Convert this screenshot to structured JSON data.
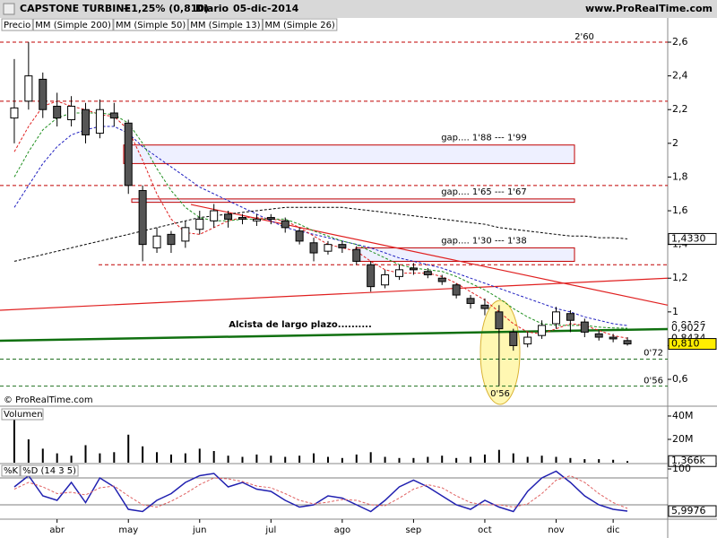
{
  "header": {
    "symbol": "CAPSTONE TURBINE",
    "change": "+1,25% (0,810)",
    "period": "Diario",
    "date": "05-dic-2014",
    "site": "www.ProRealTime.com"
  },
  "chart_data": [
    {
      "type": "candlestick",
      "name": "Precio",
      "watermark": "© ProRealTime.com",
      "categories": [
        null,
        null,
        null,
        "abr",
        null,
        null,
        null,
        null,
        "may",
        null,
        null,
        null,
        null,
        "jun",
        null,
        null,
        null,
        null,
        "jul",
        null,
        null,
        null,
        null,
        "ago",
        null,
        null,
        null,
        null,
        "sep",
        null,
        null,
        null,
        null,
        "oct",
        null,
        null,
        null,
        null,
        "nov",
        null,
        null,
        null,
        "dic",
        null
      ],
      "open": [
        2.15,
        2.25,
        2.38,
        2.22,
        2.14,
        2.2,
        2.06,
        2.18,
        2.12,
        1.72,
        1.38,
        1.46,
        1.42,
        1.49,
        1.54,
        1.58,
        1.56,
        1.54,
        1.56,
        1.54,
        1.48,
        1.41,
        1.36,
        1.4,
        1.37,
        1.28,
        1.16,
        1.21,
        1.26,
        1.24,
        1.2,
        1.16,
        1.08,
        1.04,
        1.0,
        0.88,
        0.81,
        0.86,
        0.93,
        0.99,
        0.94,
        0.87,
        0.85,
        0.83
      ],
      "high": [
        2.5,
        2.6,
        2.42,
        2.3,
        2.28,
        2.24,
        2.26,
        2.24,
        2.14,
        1.75,
        1.5,
        1.48,
        1.54,
        1.6,
        1.64,
        1.6,
        1.58,
        1.58,
        1.58,
        1.56,
        1.5,
        1.44,
        1.42,
        1.42,
        1.39,
        1.3,
        1.25,
        1.28,
        1.29,
        1.26,
        1.22,
        1.17,
        1.1,
        1.08,
        1.04,
        0.9,
        0.88,
        0.95,
        1.03,
        1.01,
        0.96,
        0.89,
        0.87,
        0.85
      ],
      "low": [
        2.0,
        2.2,
        2.15,
        2.1,
        2.1,
        2.0,
        2.03,
        2.1,
        1.7,
        1.3,
        1.35,
        1.35,
        1.38,
        1.46,
        1.5,
        1.5,
        1.52,
        1.51,
        1.52,
        1.47,
        1.4,
        1.3,
        1.34,
        1.35,
        1.28,
        1.12,
        1.14,
        1.19,
        1.22,
        1.2,
        1.16,
        1.08,
        1.02,
        0.98,
        0.56,
        0.77,
        0.79,
        0.84,
        0.9,
        0.88,
        0.85,
        0.83,
        0.82,
        0.8
      ],
      "close": [
        2.21,
        2.4,
        2.2,
        2.15,
        2.22,
        2.05,
        2.2,
        2.15,
        1.75,
        1.4,
        1.45,
        1.4,
        1.5,
        1.55,
        1.6,
        1.55,
        1.55,
        1.55,
        1.55,
        1.5,
        1.42,
        1.35,
        1.4,
        1.38,
        1.3,
        1.15,
        1.22,
        1.25,
        1.25,
        1.22,
        1.18,
        1.1,
        1.05,
        1.02,
        0.9,
        0.8,
        0.85,
        0.92,
        1.0,
        0.95,
        0.88,
        0.85,
        0.84,
        0.81
      ],
      "last_label": "0,810",
      "color_up": "#ffffff",
      "color_down": "#555555",
      "series": [
        {
          "name": "MM (Simple 200)",
          "color": "#000000",
          "last_label": "1,4330",
          "values": [
            1.3,
            1.32,
            1.34,
            1.36,
            1.38,
            1.4,
            1.42,
            1.44,
            1.46,
            1.48,
            1.5,
            1.52,
            1.54,
            1.56,
            1.57,
            1.58,
            1.59,
            1.6,
            1.61,
            1.62,
            1.62,
            1.62,
            1.62,
            1.62,
            1.61,
            1.6,
            1.59,
            1.58,
            1.57,
            1.56,
            1.55,
            1.54,
            1.53,
            1.52,
            1.5,
            1.49,
            1.48,
            1.47,
            1.46,
            1.45,
            1.45,
            1.44,
            1.44,
            1.433
          ]
        },
        {
          "name": "MM (Simple 50)",
          "color": "#2020c0",
          "last_label": "0,9186",
          "values": [
            1.62,
            1.75,
            1.88,
            1.98,
            2.05,
            2.08,
            2.1,
            2.1,
            2.06,
            1.98,
            1.92,
            1.86,
            1.8,
            1.74,
            1.7,
            1.66,
            1.62,
            1.58,
            1.54,
            1.5,
            1.48,
            1.46,
            1.44,
            1.42,
            1.4,
            1.38,
            1.35,
            1.32,
            1.3,
            1.28,
            1.26,
            1.23,
            1.2,
            1.17,
            1.14,
            1.11,
            1.08,
            1.05,
            1.02,
            1.0,
            0.97,
            0.95,
            0.93,
            0.9186
          ]
        },
        {
          "name": "MM (Simple 13)",
          "color": "#e02020",
          "last_label": "0,8434",
          "values": [
            1.95,
            2.1,
            2.22,
            2.25,
            2.22,
            2.2,
            2.17,
            2.16,
            2.08,
            1.9,
            1.7,
            1.55,
            1.47,
            1.46,
            1.5,
            1.54,
            1.56,
            1.56,
            1.55,
            1.54,
            1.5,
            1.45,
            1.4,
            1.38,
            1.36,
            1.3,
            1.25,
            1.23,
            1.23,
            1.23,
            1.21,
            1.17,
            1.12,
            1.07,
            1.0,
            0.93,
            0.88,
            0.87,
            0.9,
            0.93,
            0.92,
            0.89,
            0.86,
            0.8434
          ]
        },
        {
          "name": "MM (Simple 26)",
          "color": "#209020",
          "last_label": "0,9027",
          "values": [
            1.8,
            1.95,
            2.08,
            2.15,
            2.18,
            2.18,
            2.18,
            2.17,
            2.12,
            2.0,
            1.85,
            1.72,
            1.62,
            1.56,
            1.54,
            1.54,
            1.55,
            1.55,
            1.55,
            1.55,
            1.52,
            1.48,
            1.45,
            1.42,
            1.4,
            1.36,
            1.32,
            1.28,
            1.26,
            1.25,
            1.24,
            1.21,
            1.17,
            1.13,
            1.08,
            1.02,
            0.97,
            0.93,
            0.92,
            0.92,
            0.92,
            0.91,
            0.905,
            0.9027
          ]
        }
      ],
      "ylim": [
        0.446,
        2.664
      ],
      "yticks": [
        {
          "value": 0.6,
          "label": "0,6"
        },
        {
          "value": 0.8,
          "label": "0,8"
        },
        1,
        {
          "value": 1.2,
          "label": "1,2"
        },
        {
          "value": 1.4,
          "label": "1,4"
        },
        {
          "value": 1.6,
          "label": "1,6"
        },
        {
          "value": 1.8,
          "label": "1,8"
        },
        2,
        {
          "value": 2.2,
          "label": "2,2"
        },
        {
          "value": 2.4,
          "label": "2,4"
        },
        {
          "value": 2.6,
          "label": "2,6"
        }
      ],
      "hlines": [
        {
          "value": 2.6,
          "label": "2'60",
          "color": "#c00000"
        },
        {
          "value": 2.25,
          "color": "#c00000"
        },
        {
          "value": 1.75,
          "color": "#c00000"
        },
        {
          "value": 1.28,
          "color": "#c00000"
        },
        {
          "value": 0.72,
          "label": "0'72",
          "color": "#207020"
        },
        {
          "value": 0.56,
          "label": "0'56",
          "color": "#207020"
        }
      ],
      "gaps": [
        {
          "label": "gap.... 1'88 --- 1'99",
          "low": 1.88,
          "high": 1.99
        },
        {
          "label": "gap.... 1'65 --- 1'67",
          "low": 1.65,
          "high": 1.67
        },
        {
          "label": "gap.... 1'30 --- 1'38",
          "low": 1.3,
          "high": 1.38
        }
      ],
      "trendlines": [
        {
          "label": "Alcista de largo plazo..........",
          "from": 0.829,
          "to": 0.898,
          "color": "#107010"
        },
        {
          "from": 1.01,
          "to": 1.2,
          "color": "#e02020"
        },
        {
          "from": 1.637,
          "to": 1.04,
          "color": "#e02020"
        }
      ]
    },
    {
      "type": "bar",
      "name": "Volumen",
      "color": "#000000",
      "last_label": "1,366k",
      "values": [
        38000000,
        20000000,
        12000000,
        8000000,
        6000000,
        15000000,
        8000000,
        9000000,
        24000000,
        14000000,
        9000000,
        7000000,
        8000000,
        12000000,
        10000000,
        6000000,
        5000000,
        7000000,
        6000000,
        5000000,
        6000000,
        8000000,
        5000000,
        4000000,
        7000000,
        9000000,
        5000000,
        4000000,
        4000000,
        5000000,
        6000000,
        4000000,
        5000000,
        7000000,
        11000000,
        8000000,
        5000000,
        6000000,
        5000000,
        4000000,
        3000000,
        3000000,
        2500000,
        1366000
      ],
      "ylim": [
        0,
        46900000
      ],
      "yticks": [
        {
          "value": 20000000,
          "label": "20M"
        },
        {
          "value": 40000000,
          "label": "40M"
        }
      ]
    },
    {
      "type": "line",
      "name": "%K",
      "last_label": "5,9976",
      "series": [
        {
          "name": "%K",
          "color": "#2020b0",
          "values": [
            60,
            85,
            40,
            30,
            70,
            25,
            80,
            60,
            10,
            5,
            30,
            45,
            70,
            85,
            90,
            60,
            70,
            55,
            50,
            30,
            15,
            20,
            40,
            35,
            20,
            5,
            30,
            60,
            75,
            60,
            40,
            20,
            10,
            30,
            15,
            5,
            50,
            80,
            95,
            70,
            40,
            20,
            10,
            5.9976
          ]
        },
        {
          "name": "%D (14 3 5)",
          "color": "#e06060",
          "values": [
            55,
            70,
            60,
            45,
            48,
            42,
            58,
            62,
            40,
            20,
            15,
            28,
            45,
            65,
            80,
            78,
            72,
            62,
            58,
            45,
            30,
            22,
            26,
            32,
            30,
            20,
            18,
            35,
            55,
            65,
            58,
            40,
            25,
            20,
            20,
            15,
            22,
            45,
            75,
            85,
            70,
            45,
            25,
            12
          ]
        }
      ],
      "ylim": [
        -10,
        110
      ],
      "yticks": [
        100
      ],
      "hlines": [
        {
          "value": 80
        },
        {
          "value": 20
        }
      ]
    }
  ]
}
